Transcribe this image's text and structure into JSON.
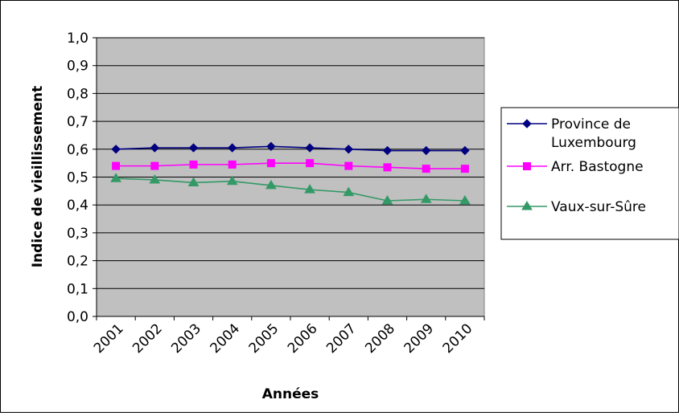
{
  "chart_data": {
    "type": "line",
    "title": "",
    "xlabel": "Années",
    "ylabel": "Indice de vieillissement",
    "categories": [
      "2001",
      "2002",
      "2003",
      "2004",
      "2005",
      "2006",
      "2007",
      "2008",
      "2009",
      "2010"
    ],
    "ylim": [
      0,
      1
    ],
    "y_ticks": [
      "0,0",
      "0,1",
      "0,2",
      "0,3",
      "0,4",
      "0,5",
      "0,6",
      "0,7",
      "0,8",
      "0,9",
      "1,0"
    ],
    "grid": true,
    "plot_background": "#c0c0c0",
    "legend_position": "right",
    "series": [
      {
        "name": "Province de Luxembourg",
        "name_lines": [
          "Province de",
          "Luxembourg"
        ],
        "color": "#000080",
        "marker": "diamond",
        "values": [
          0.6,
          0.605,
          0.605,
          0.605,
          0.61,
          0.605,
          0.6,
          0.595,
          0.595,
          0.595
        ]
      },
      {
        "name": "Arr. Bastogne",
        "name_lines": [
          "Arr. Bastogne"
        ],
        "color": "#ff00ff",
        "marker": "square",
        "values": [
          0.54,
          0.54,
          0.545,
          0.545,
          0.55,
          0.55,
          0.54,
          0.535,
          0.53,
          0.53
        ]
      },
      {
        "name": "Vaux-sur-Sûre",
        "name_lines": [
          "Vaux-sur-Sûre"
        ],
        "color": "#339966",
        "marker": "triangle",
        "values": [
          0.495,
          0.49,
          0.48,
          0.485,
          0.47,
          0.455,
          0.445,
          0.415,
          0.42,
          0.415
        ]
      }
    ]
  }
}
